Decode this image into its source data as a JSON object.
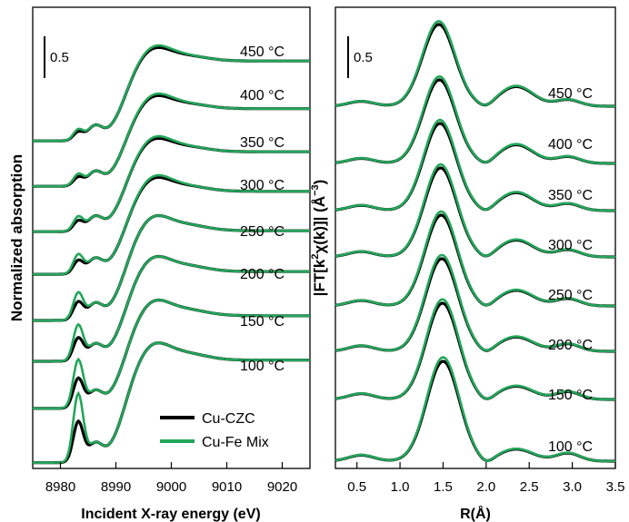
{
  "colors": {
    "series1": "#000000",
    "series2": "#22a65a",
    "axis": "#000000"
  },
  "chart_data": [
    {
      "type": "line",
      "xlabel": "Incident X-ray energy (eV)",
      "ylabel": "Normalized absorption",
      "xlim": [
        8975,
        9025
      ],
      "x_ticks": [
        "8980",
        "8990",
        "9000",
        "9010",
        "9020"
      ],
      "x_tick_values": [
        8980,
        8990,
        9000,
        9010,
        9020
      ],
      "scale_bar_label": "0.5",
      "scale_bar_value": 0.5,
      "legend": [
        "Cu-CZC",
        "Cu-Fe Mix"
      ],
      "legend_position": "bottom-right",
      "temperatures": [
        "450 °C",
        "400 °C",
        "350 °C",
        "300 °C",
        "250 °C",
        "200 °C",
        "150 °C",
        "100 °C"
      ],
      "series": [
        {
          "name": "Cu-CZC"
        },
        {
          "name": "Cu-Fe Mix"
        }
      ]
    },
    {
      "type": "line",
      "xlabel": "R(Å)",
      "ylabel_parts": [
        "|FT[k",
        "2",
        "χ(k)]| (Å",
        "−3",
        ")"
      ],
      "xlim": [
        0.25,
        3.5
      ],
      "x_ticks": [
        "0.5",
        "1.0",
        "1.5",
        "2.0",
        "2.5",
        "3.0",
        "3.5"
      ],
      "x_tick_values": [
        0.5,
        1.0,
        1.5,
        2.0,
        2.5,
        3.0,
        3.5
      ],
      "scale_bar_label": "0.5",
      "scale_bar_value": 0.5,
      "temperatures": [
        "450 °C",
        "400 °C",
        "350 °C",
        "300 °C",
        "250 °C",
        "200 °C",
        "150 °C",
        "100 °C"
      ]
    }
  ]
}
